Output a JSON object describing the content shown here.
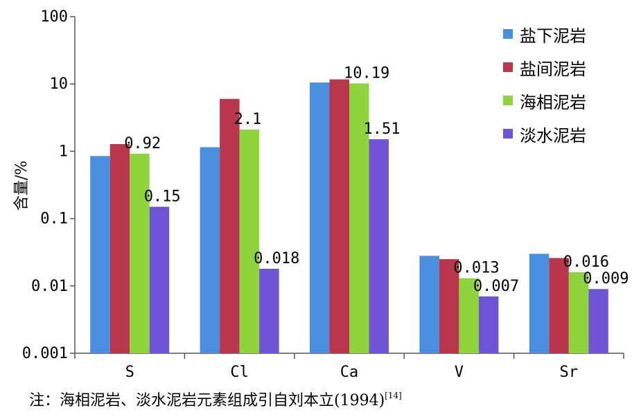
{
  "chart_data": {
    "type": "bar",
    "yscale": "log",
    "ylim": [
      0.001,
      100
    ],
    "ylabel": "含量/%",
    "xlabel": "",
    "title": "",
    "yticks": [
      "0.001",
      "0.01",
      "0.1",
      "1",
      "10",
      "100"
    ],
    "categories": [
      "S",
      "Cl",
      "Ca",
      "V",
      "Sr"
    ],
    "series": [
      {
        "name": "盐下泥岩",
        "color": "#4a8ee0",
        "values": [
          0.85,
          1.15,
          10.5,
          0.028,
          0.03
        ]
      },
      {
        "name": "盐间泥岩",
        "color": "#b8374c",
        "values": [
          1.28,
          6.0,
          11.7,
          0.025,
          0.026
        ]
      },
      {
        "name": "海相泥岩",
        "color": "#8fd43c",
        "values": [
          0.92,
          2.1,
          10.19,
          0.013,
          0.016
        ]
      },
      {
        "name": "淡水泥岩",
        "color": "#6f55d6",
        "values": [
          0.15,
          0.018,
          1.51,
          0.007,
          0.009
        ]
      }
    ],
    "data_labels": [
      {
        "category": 0,
        "series": 2,
        "text": "0.92"
      },
      {
        "category": 0,
        "series": 3,
        "text": "0.15"
      },
      {
        "category": 1,
        "series": 2,
        "text": "2.1"
      },
      {
        "category": 1,
        "series": 3,
        "text": "0.018"
      },
      {
        "category": 2,
        "series": 2,
        "text": "10.19"
      },
      {
        "category": 2,
        "series": 3,
        "text": "1.51"
      },
      {
        "category": 3,
        "series": 2,
        "text": "0.013"
      },
      {
        "category": 3,
        "series": 3,
        "text": "0.007"
      },
      {
        "category": 4,
        "series": 2,
        "text": "0.016"
      },
      {
        "category": 4,
        "series": 3,
        "text": "0.009"
      }
    ],
    "legend": "top-right",
    "grid": false
  },
  "note": {
    "text": "注：海相泥岩、淡水泥岩元素组成引自刘本立(1994)",
    "ref": "[14]"
  }
}
